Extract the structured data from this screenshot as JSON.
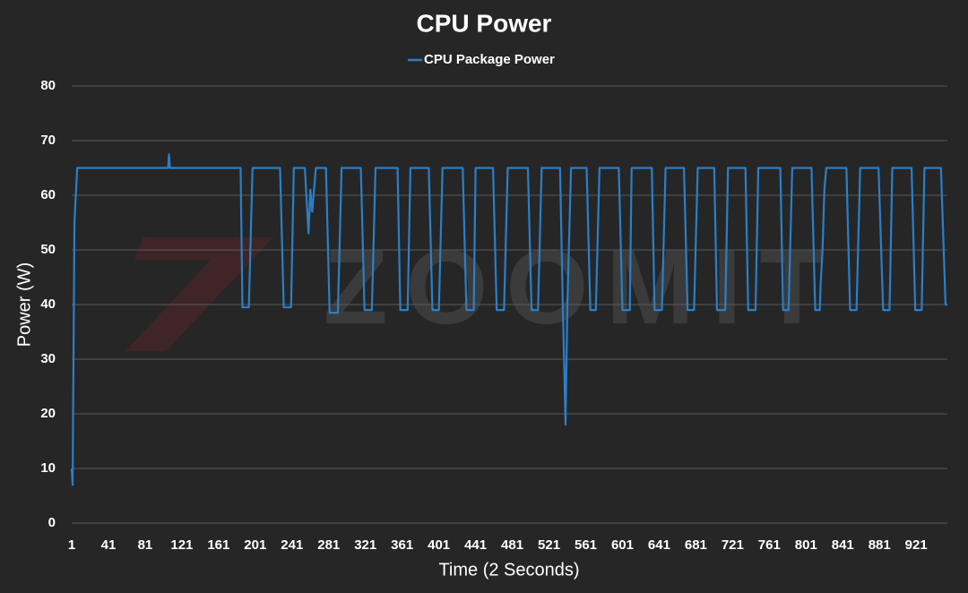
{
  "chart_data": {
    "type": "line",
    "title": "CPU Power",
    "xlabel": "Time (2 Seconds)",
    "ylabel": "Power (W)",
    "watermark": "ZOOMIT",
    "legend": "top",
    "grid": true,
    "xlim": [
      1,
      955
    ],
    "ylim": [
      0,
      80
    ],
    "xticks": [
      1,
      41,
      81,
      121,
      161,
      201,
      241,
      281,
      321,
      361,
      401,
      441,
      481,
      521,
      561,
      601,
      641,
      681,
      721,
      761,
      801,
      841,
      881,
      921
    ],
    "yticks": [
      0,
      10,
      20,
      30,
      40,
      50,
      60,
      70,
      80
    ],
    "x": [
      1,
      2,
      4,
      7,
      106,
      107,
      108,
      185,
      187,
      194,
      198,
      228,
      232,
      240,
      243,
      255,
      259,
      261,
      263,
      267,
      278,
      282,
      291,
      295,
      316,
      320,
      328,
      332,
      356,
      359,
      367,
      370,
      390,
      394,
      401,
      405,
      427,
      431,
      439,
      441,
      460,
      464,
      472,
      476,
      498,
      502,
      509,
      513,
      533,
      536,
      539,
      541,
      545,
      562,
      566,
      572,
      576,
      597,
      601,
      609,
      611,
      633,
      636,
      644,
      648,
      668,
      672,
      679,
      683,
      701,
      704,
      713,
      716,
      735,
      738,
      746,
      749,
      773,
      776,
      782,
      786,
      807,
      811,
      816,
      817,
      819,
      821,
      823,
      845,
      849,
      856,
      860,
      880,
      885,
      892,
      895,
      916,
      920,
      927,
      930,
      948,
      953,
      955
    ],
    "series": [
      {
        "name": "CPU Package Power",
        "color": "#2a7fc9",
        "values": [
          10,
          7,
          55,
          65,
          65,
          67.5,
          65,
          65,
          39.5,
          39.5,
          65,
          65,
          39.5,
          39.5,
          65,
          65,
          53,
          61,
          57,
          65,
          65,
          38.5,
          38.5,
          65,
          65,
          39,
          39,
          65,
          65,
          39,
          39,
          65,
          65,
          39,
          39,
          65,
          65,
          39,
          39,
          65,
          65,
          39,
          39,
          65,
          65,
          39,
          39,
          65,
          65,
          40,
          18,
          40,
          65,
          65,
          39,
          39,
          65,
          65,
          39,
          39,
          65,
          65,
          39,
          39,
          65,
          65,
          39,
          39,
          65,
          65,
          39,
          39,
          65,
          65,
          39,
          39,
          65,
          65,
          39,
          39,
          65,
          65,
          39,
          39,
          44,
          50,
          61,
          65,
          65,
          39,
          39,
          65,
          65,
          39,
          39,
          65,
          65,
          39,
          39,
          65,
          65,
          40,
          40
        ]
      }
    ]
  }
}
